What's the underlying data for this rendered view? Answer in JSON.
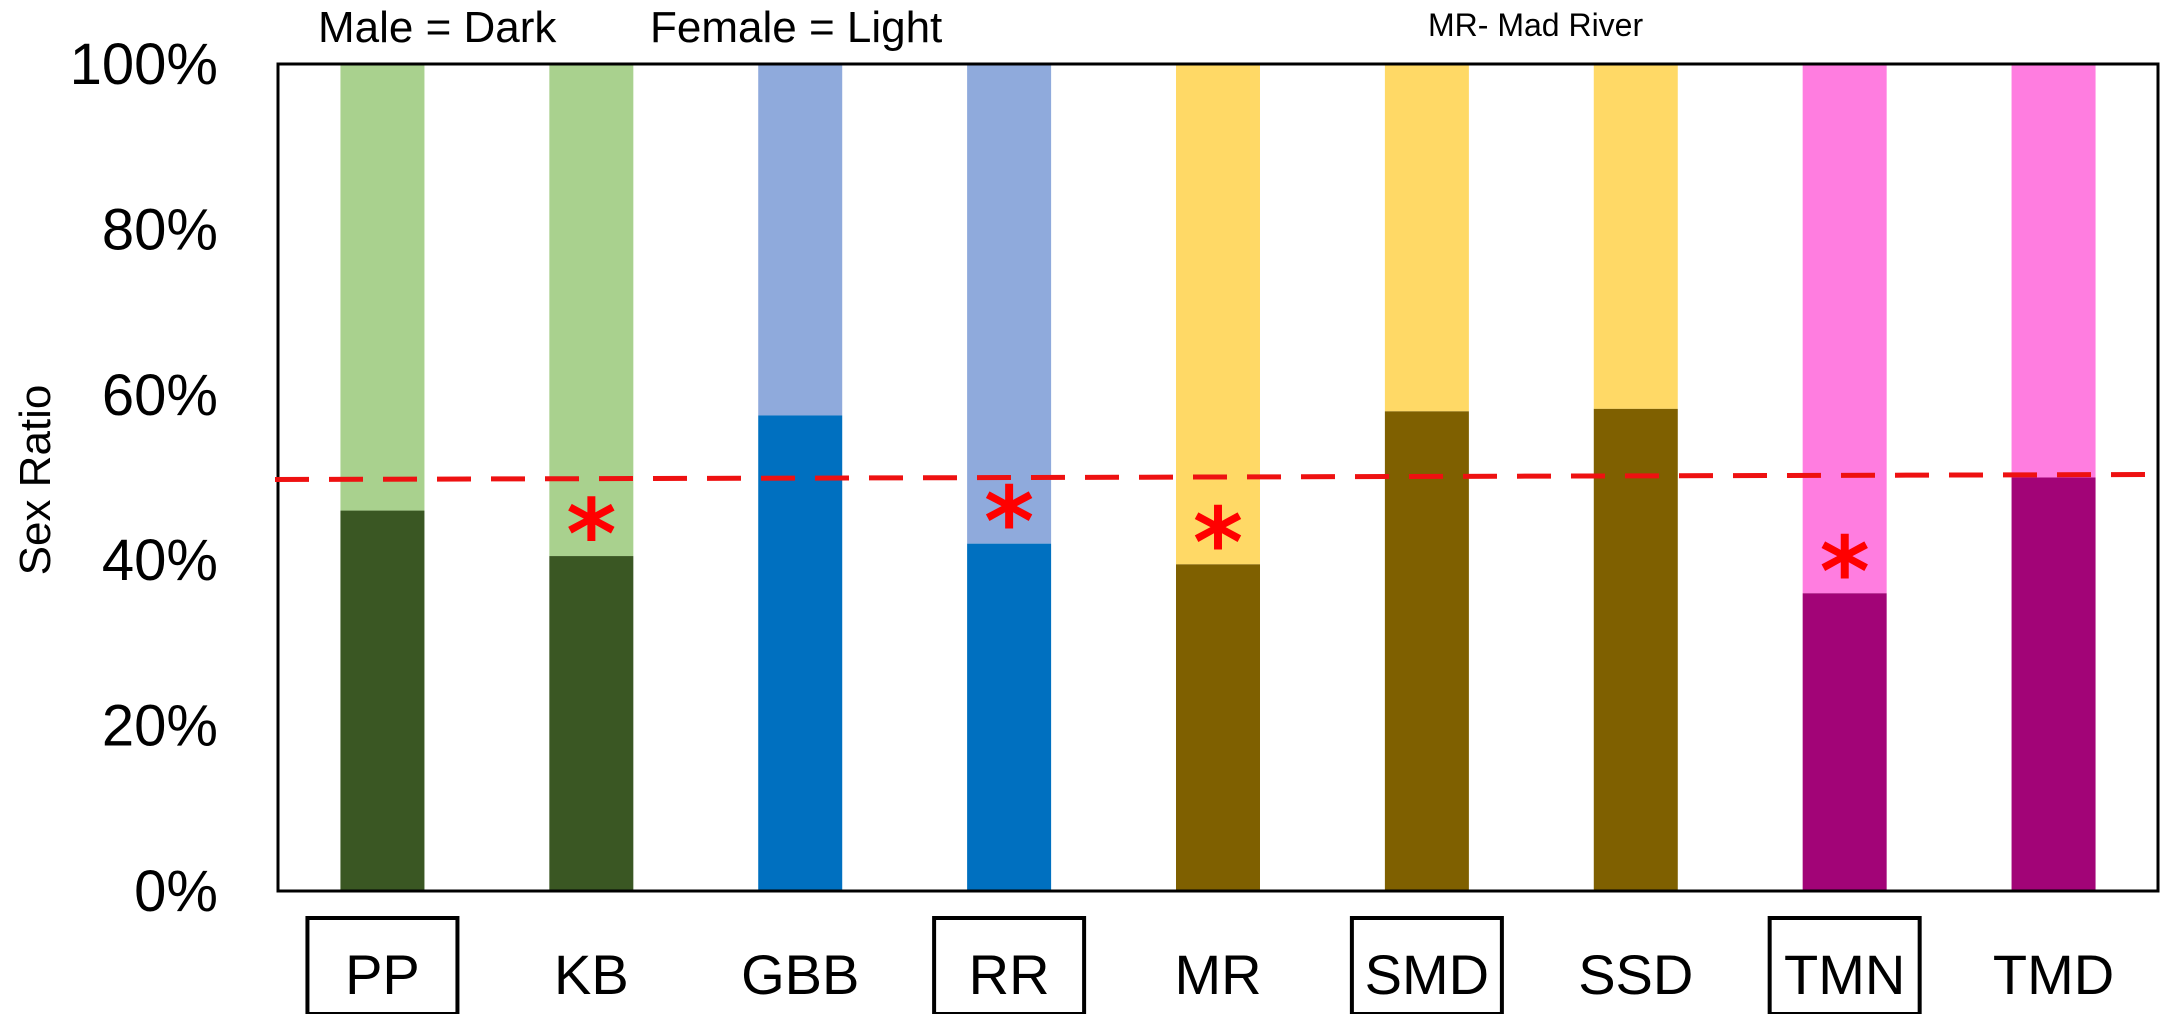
{
  "legend": {
    "male_text": "Male = Dark",
    "female_text": "Female = Light",
    "note_text": "MR- Mad River"
  },
  "chart_data": {
    "type": "bar",
    "stacked": true,
    "ylabel": "Sex Ratio",
    "ylim": [
      0,
      100
    ],
    "y_ticks": [
      "0%",
      "20%",
      "40%",
      "60%",
      "80%",
      "100%"
    ],
    "reference_line": {
      "value": 50,
      "style": "dashed",
      "color": "#ee1111"
    },
    "categories": [
      "PP",
      "KB",
      "GBB",
      "RR",
      "MR",
      "SMD",
      "SSD",
      "TMN",
      "TMD"
    ],
    "boxed_categories": [
      "PP",
      "RR",
      "SMD",
      "TMN"
    ],
    "significant_categories": [
      "KB",
      "RR",
      "MR",
      "TMN"
    ],
    "significance_marker": "*",
    "series": [
      {
        "name": "Male",
        "values": [
          46,
          40.5,
          57.5,
          42,
          39.5,
          58,
          58.3,
          36,
          50
        ]
      },
      {
        "name": "Female",
        "values": [
          54,
          59.5,
          42.5,
          58,
          60.5,
          42,
          41.7,
          64,
          50
        ]
      }
    ],
    "colors": {
      "male": [
        "#3a5723",
        "#3a5723",
        "#0070c0",
        "#0070c0",
        "#7f6000",
        "#7f6000",
        "#7f6000",
        "#a20477",
        "#a20477"
      ],
      "female": [
        "#a9d18e",
        "#a9d18e",
        "#8faadc",
        "#8faadc",
        "#ffd966",
        "#ffd966",
        "#ffd966",
        "#ff7de0",
        "#ff7de0"
      ]
    }
  }
}
